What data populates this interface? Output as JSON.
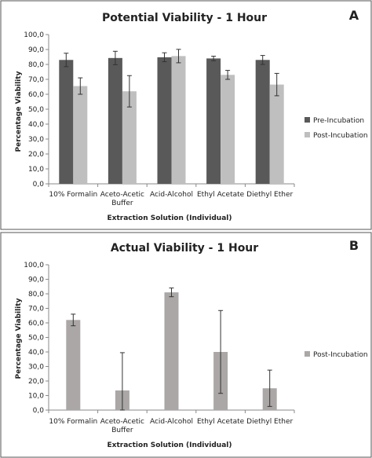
{
  "chart_data": [
    {
      "type": "bar",
      "panel": "A",
      "title": "Potential Viability - 1 Hour",
      "xlabel": "Extraction Solution (Individual)",
      "ylabel": "Percentage Viability",
      "ylim": [
        0,
        100
      ],
      "ytick_labels": [
        "0,0",
        "10,0",
        "20,0",
        "30,0",
        "40,0",
        "50,0",
        "60,0",
        "70,0",
        "80,0",
        "90,0",
        "100,0"
      ],
      "categories": [
        [
          "10% Formalin"
        ],
        [
          "Aceto-Acetic",
          "Buffer"
        ],
        [
          "Acid-Alcohol"
        ],
        [
          "Ethyl Acetate"
        ],
        [
          "Diethyl Ether"
        ]
      ],
      "legend_position": "right",
      "series": [
        {
          "name": "Pre-Incubation",
          "color": "#595959",
          "values": [
            83.0,
            84.3,
            84.8,
            84.0,
            83.0
          ],
          "errors": [
            4.5,
            4.5,
            3.0,
            1.5,
            3.0
          ]
        },
        {
          "name": "Post-Incubation",
          "color": "#bfbfbf",
          "values": [
            65.5,
            62.0,
            85.6,
            73.0,
            66.5
          ],
          "errors": [
            5.5,
            10.5,
            4.5,
            3.0,
            7.5
          ]
        }
      ]
    },
    {
      "type": "bar",
      "panel": "B",
      "title": "Actual Viability - 1 Hour",
      "xlabel": "Extraction Solution (Individual)",
      "ylabel": "Percentage Viability",
      "ylim": [
        0,
        100
      ],
      "ytick_labels": [
        "0,0",
        "10,0",
        "20,0",
        "30,0",
        "40,0",
        "50,0",
        "60,0",
        "70,0",
        "80,0",
        "90,0",
        "100,0"
      ],
      "categories": [
        [
          "10% Formalin"
        ],
        [
          "Aceto-Acetic",
          "Buffer"
        ],
        [
          "Acid-Alcohol"
        ],
        [
          "Ethyl Acetate"
        ],
        [
          "Diethyl Ether"
        ]
      ],
      "legend_position": "right",
      "series": [
        {
          "name": "Post-Incubation",
          "color": "#aaa7a6",
          "values": [
            62.0,
            13.5,
            81.0,
            40.0,
            15.0
          ],
          "errors": [
            4.0,
            26.0,
            3.0,
            28.5,
            12.5
          ]
        }
      ]
    }
  ]
}
